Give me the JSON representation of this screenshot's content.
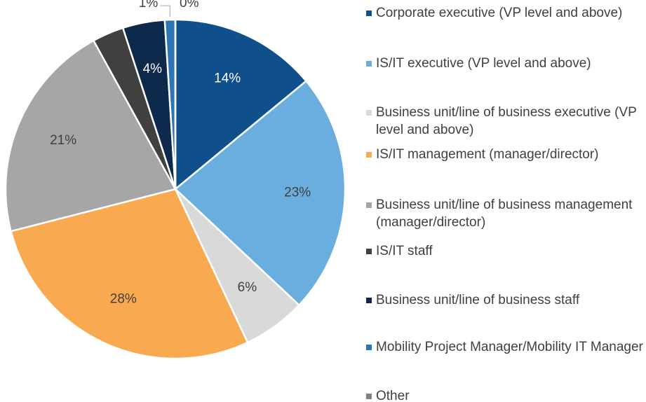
{
  "chart_data": {
    "type": "pie",
    "categories": [
      "Corporate executive (VP level and above)",
      "IS/IT executive (VP level and above)",
      "Business unit/line of business executive (VP level and above)",
      "IS/IT management (manager/director)",
      "Business unit/line of business management (manager/director)",
      "IS/IT staff",
      "Business unit/line of business staff",
      "Mobility Project Manager/Mobility IT Manager",
      "Other"
    ],
    "values": [
      14,
      23,
      6,
      28,
      21,
      3,
      4,
      1,
      0
    ],
    "value_labels": [
      "14%",
      "23%",
      "6%",
      "28%",
      "21%",
      null,
      "4%",
      "1%",
      "0%"
    ],
    "colors": [
      "#0f4f8c",
      "#6aaee0",
      "#d9d9d9",
      "#f9a94f",
      "#a6a6a6",
      "#404040",
      "#0d2a4d",
      "#2e75b6",
      "#808080"
    ],
    "legend": "right"
  }
}
